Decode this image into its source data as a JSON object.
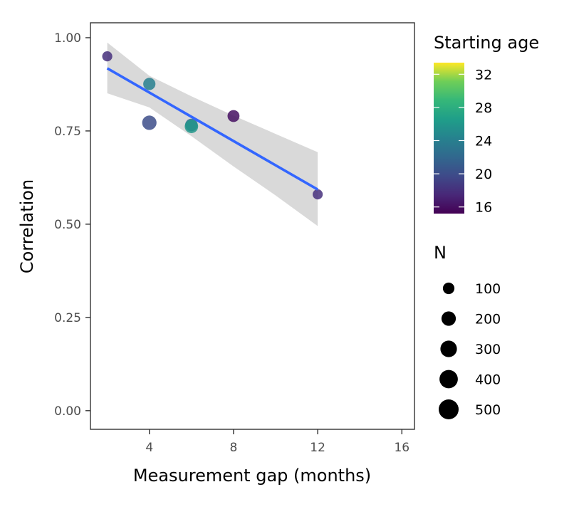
{
  "chart_data": {
    "type": "scatter",
    "xlabel": "Measurement gap (months)",
    "ylabel": "Correlation",
    "xlim": [
      1.2,
      16.6
    ],
    "ylim": [
      -0.05,
      1.04
    ],
    "x_ticks": [
      4,
      8,
      12,
      16
    ],
    "x_tick_labels": [
      "4",
      "8",
      "12",
      "16"
    ],
    "y_ticks": [
      0,
      0.25,
      0.5,
      0.75,
      1.0
    ],
    "y_tick_labels": [
      "0.00",
      "0.25",
      "0.50",
      "0.75",
      "1.00"
    ],
    "grid": false,
    "points": [
      {
        "x": 2,
        "y": 0.95,
        "starting_age": 18,
        "n": 60
      },
      {
        "x": 4,
        "y": 0.876,
        "starting_age": 24,
        "n": 120
      },
      {
        "x": 4,
        "y": 0.772,
        "starting_age": 20,
        "n": 200
      },
      {
        "x": 6,
        "y": 0.766,
        "starting_age": 22,
        "n": 130
      },
      {
        "x": 6,
        "y": 0.762,
        "starting_age": 26,
        "n": 160
      },
      {
        "x": 8,
        "y": 0.79,
        "starting_age": 16,
        "n": 110
      },
      {
        "x": 12,
        "y": 0.58,
        "starting_age": 18,
        "n": 60
      }
    ],
    "trend_line": {
      "method": "linear",
      "color": "#3366FF",
      "points": [
        {
          "x": 2,
          "y": 0.918
        },
        {
          "x": 12,
          "y": 0.593
        }
      ],
      "ci_band": [
        {
          "x": 2,
          "lower": 0.851,
          "upper": 0.987
        },
        {
          "x": 4,
          "lower": 0.813,
          "upper": 0.898
        },
        {
          "x": 6,
          "lower": 0.736,
          "upper": 0.843
        },
        {
          "x": 8,
          "lower": 0.655,
          "upper": 0.791
        },
        {
          "x": 10,
          "lower": 0.577,
          "upper": 0.742
        },
        {
          "x": 12,
          "lower": 0.495,
          "upper": 0.693
        }
      ],
      "ci_color": "#D9D9D9"
    },
    "legend_color": {
      "title": "Starting age",
      "scale": "viridis",
      "range": [
        15.2,
        33.4
      ],
      "breaks": [
        16,
        20,
        24,
        28,
        32
      ],
      "labels": [
        "16",
        "20",
        "24",
        "28",
        "32"
      ]
    },
    "legend_size": {
      "title": "N",
      "breaks": [
        100,
        200,
        300,
        400,
        500
      ],
      "labels": [
        "100",
        "200",
        "300",
        "400",
        "500"
      ]
    },
    "legend_position": "right"
  }
}
